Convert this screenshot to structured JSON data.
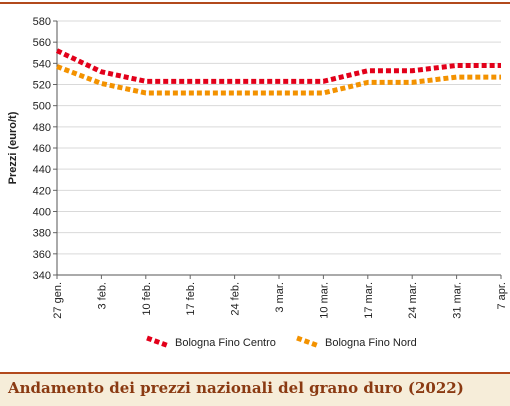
{
  "caption": "Andamento dei prezzi nazionali del grano duro (2022)",
  "chart_data": {
    "type": "line",
    "ylabel": "Prezzi (euro/t)",
    "xlabel": "",
    "ylim": [
      340,
      580
    ],
    "yticks": [
      340,
      360,
      380,
      400,
      420,
      440,
      460,
      480,
      500,
      520,
      540,
      560,
      580
    ],
    "categories": [
      "27 gen.",
      "3 feb.",
      "10 feb.",
      "17 feb.",
      "24 feb.",
      "3 mar.",
      "10 mar.",
      "17 mar.",
      "24 mar.",
      "31 mar.",
      "7 apr."
    ],
    "grid": "horizontal",
    "legend_position": "bottom",
    "series": [
      {
        "name": "Bologna Fino Centro",
        "color": "#e2001a",
        "values": [
          552,
          532,
          523,
          523,
          523,
          523,
          523,
          533,
          533,
          538,
          538
        ]
      },
      {
        "name": "Bologna Fino Nord",
        "color": "#f39200",
        "values": [
          537,
          521,
          512,
          512,
          512,
          512,
          512,
          522,
          522,
          527,
          527
        ]
      }
    ]
  }
}
